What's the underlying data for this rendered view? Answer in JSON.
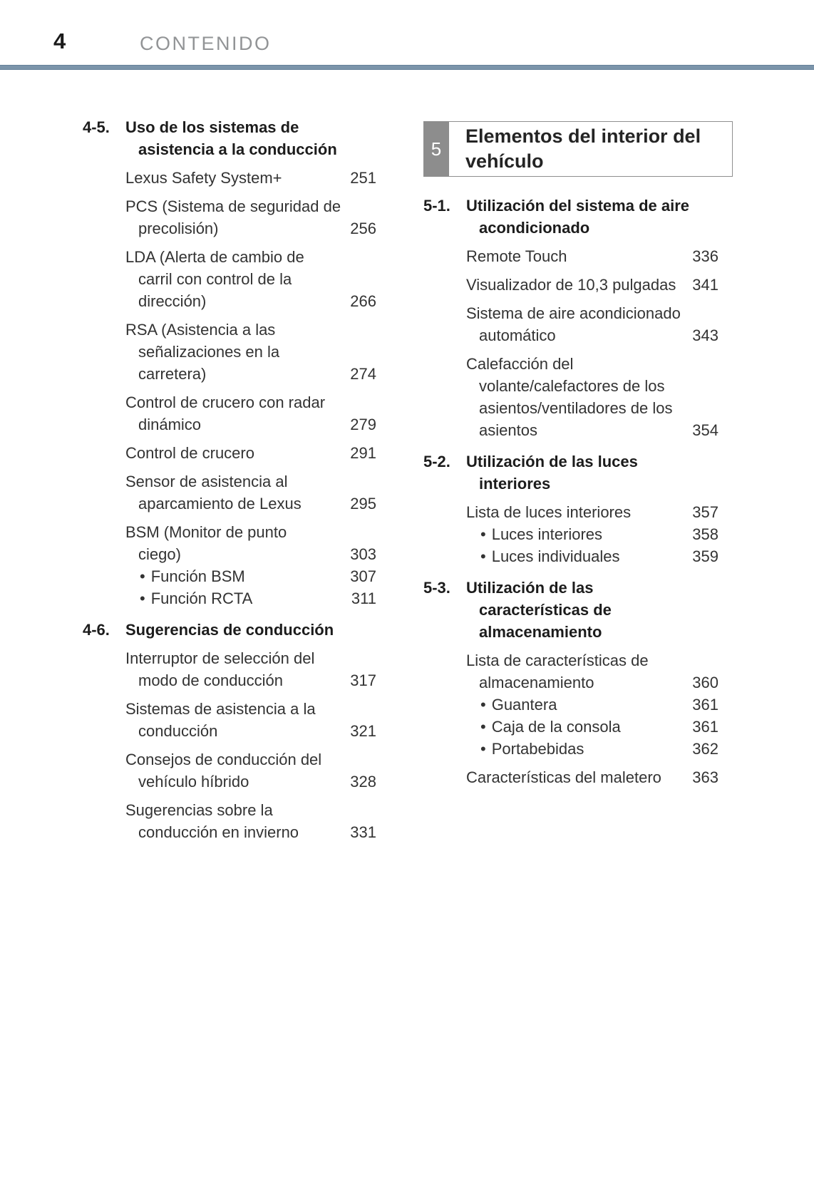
{
  "page": {
    "number": "4",
    "header": "CONTENIDO"
  },
  "chars": {
    "bullet": "•"
  },
  "colors": {
    "rule_blue": "#7b94aa",
    "header_gray": "#929496",
    "chapter_tab_bg": "#8d8d8d",
    "chapter_tab_fg": "#ffffff",
    "box_border": "#8f8f8f",
    "body_text": "#333333"
  },
  "chapter_banner": {
    "number": "5",
    "title_lines": [
      "Elementos del interior del",
      "vehículo"
    ]
  },
  "toc": {
    "left": [
      {
        "type": "section",
        "num": "4-5.",
        "lines": [
          "Uso de los sistemas de",
          "asistencia a la conducción"
        ]
      },
      {
        "type": "entry",
        "lines": [
          "Lexus Safety System+"
        ],
        "page": "251"
      },
      {
        "type": "entry",
        "lines": [
          "PCS (Sistema de seguridad de",
          "precolisión)"
        ],
        "page": "256"
      },
      {
        "type": "entry",
        "lines": [
          "LDA (Alerta de cambio de",
          "carril con control de la",
          "dirección)"
        ],
        "page": "266"
      },
      {
        "type": "entry",
        "lines": [
          "RSA (Asistencia a las",
          "señalizaciones en la",
          "carretera)"
        ],
        "page": "274"
      },
      {
        "type": "entry",
        "lines": [
          "Control de crucero con radar",
          "dinámico"
        ],
        "page": "279"
      },
      {
        "type": "entry",
        "lines": [
          "Control de crucero"
        ],
        "page": "291"
      },
      {
        "type": "entry",
        "lines": [
          "Sensor de asistencia al",
          "aparcamiento de Lexus"
        ],
        "page": "295"
      },
      {
        "type": "entry",
        "lines": [
          "BSM (Monitor de punto",
          "ciego)"
        ],
        "page": "303"
      },
      {
        "type": "bullet",
        "lines": [
          "Función BSM"
        ],
        "page": "307"
      },
      {
        "type": "bullet",
        "lines": [
          "Función RCTA"
        ],
        "page": "311"
      },
      {
        "type": "section",
        "num": "4-6.",
        "lines": [
          "Sugerencias de conducción"
        ]
      },
      {
        "type": "entry",
        "lines": [
          "Interruptor de selección del",
          "modo de conducción"
        ],
        "page": "317"
      },
      {
        "type": "entry",
        "lines": [
          "Sistemas de asistencia a la",
          "conducción"
        ],
        "page": "321"
      },
      {
        "type": "entry",
        "lines": [
          "Consejos de conducción del",
          "vehículo híbrido"
        ],
        "page": "328"
      },
      {
        "type": "entry",
        "lines": [
          "Sugerencias sobre la",
          "conducción en invierno"
        ],
        "page": "331"
      }
    ],
    "right": [
      {
        "type": "section",
        "num": "5-1.",
        "lines": [
          "Utilización del sistema de aire",
          "acondicionado"
        ]
      },
      {
        "type": "entry",
        "lines": [
          "Remote Touch"
        ],
        "page": "336"
      },
      {
        "type": "entry",
        "lines": [
          "Visualizador de 10,3 pulgadas"
        ],
        "page": "341"
      },
      {
        "type": "entry",
        "lines": [
          "Sistema de aire acondicionado",
          "automático"
        ],
        "page": "343"
      },
      {
        "type": "entry",
        "lines": [
          "Calefacción del",
          "volante/calefactores de los",
          "asientos/ventiladores de los",
          "asientos"
        ],
        "page": "354"
      },
      {
        "type": "section",
        "num": "5-2.",
        "lines": [
          "Utilización de las luces",
          "interiores"
        ]
      },
      {
        "type": "entry",
        "lines": [
          "Lista de luces interiores"
        ],
        "page": "357"
      },
      {
        "type": "bullet",
        "lines": [
          "Luces interiores"
        ],
        "page": "358"
      },
      {
        "type": "bullet",
        "lines": [
          "Luces individuales"
        ],
        "page": "359"
      },
      {
        "type": "section",
        "num": "5-3.",
        "lines": [
          "Utilización de las",
          "características de",
          "almacenamiento"
        ]
      },
      {
        "type": "entry",
        "lines": [
          "Lista de características de",
          "almacenamiento"
        ],
        "page": "360"
      },
      {
        "type": "bullet",
        "lines": [
          "Guantera"
        ],
        "page": "361"
      },
      {
        "type": "bullet",
        "lines": [
          "Caja de la consola"
        ],
        "page": "361"
      },
      {
        "type": "bullet",
        "lines": [
          "Portabebidas"
        ],
        "page": "362"
      },
      {
        "type": "entry",
        "lines": [
          "Características del maletero"
        ],
        "page": "363"
      }
    ]
  }
}
